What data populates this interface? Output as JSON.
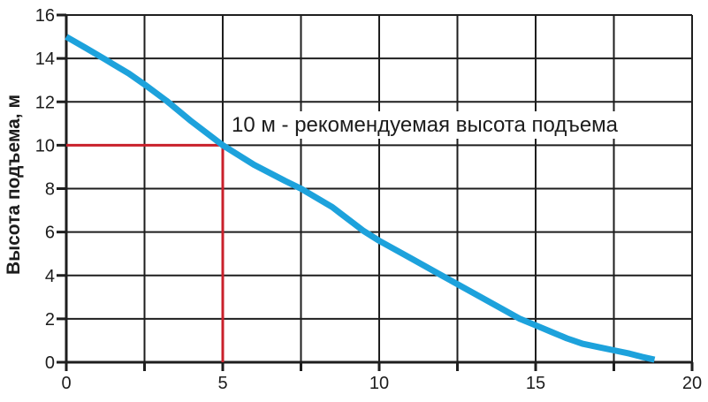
{
  "chart_data": {
    "type": "line",
    "ylabel": "Высота подъема, м",
    "xlim": [
      0,
      20
    ],
    "ylim": [
      0,
      16
    ],
    "x_grid_step": 2.5,
    "y_grid_step": 2,
    "x_tick_labels": [
      0,
      5,
      10,
      15,
      20
    ],
    "y_tick_labels": [
      0,
      2,
      4,
      6,
      8,
      10,
      12,
      14,
      16
    ],
    "grid": true,
    "legend": "none",
    "series": [
      {
        "name": "pump-head-curve",
        "color": "#1DA2DC",
        "points": [
          [
            0,
            15.0
          ],
          [
            0.6,
            14.5
          ],
          [
            1.25,
            13.95
          ],
          [
            2,
            13.3
          ],
          [
            2.5,
            12.8
          ],
          [
            3.2,
            12.05
          ],
          [
            4,
            11.1
          ],
          [
            5,
            10.0
          ],
          [
            6,
            9.1
          ],
          [
            7,
            8.35
          ],
          [
            7.5,
            8.0
          ],
          [
            8.5,
            7.15
          ],
          [
            9.5,
            6.05
          ],
          [
            10,
            5.6
          ],
          [
            11,
            4.8
          ],
          [
            12,
            4.0
          ],
          [
            13,
            3.2
          ],
          [
            14,
            2.4
          ],
          [
            14.5,
            2.0
          ],
          [
            15,
            1.7
          ],
          [
            15.5,
            1.4
          ],
          [
            16,
            1.1
          ],
          [
            16.5,
            0.85
          ],
          [
            17,
            0.7
          ],
          [
            17.5,
            0.55
          ],
          [
            18,
            0.4
          ],
          [
            18.4,
            0.25
          ],
          [
            18.8,
            0.12
          ]
        ]
      }
    ],
    "annotation": {
      "text": "10 м - рекомендуемая высота подъема",
      "marker_x": 5,
      "marker_y": 10,
      "color": "#C9202B"
    },
    "colors": {
      "grid": "#1e1e1e",
      "axis": "#1e1e1e",
      "text": "#1c1c1c",
      "background": "#ffffff"
    }
  }
}
